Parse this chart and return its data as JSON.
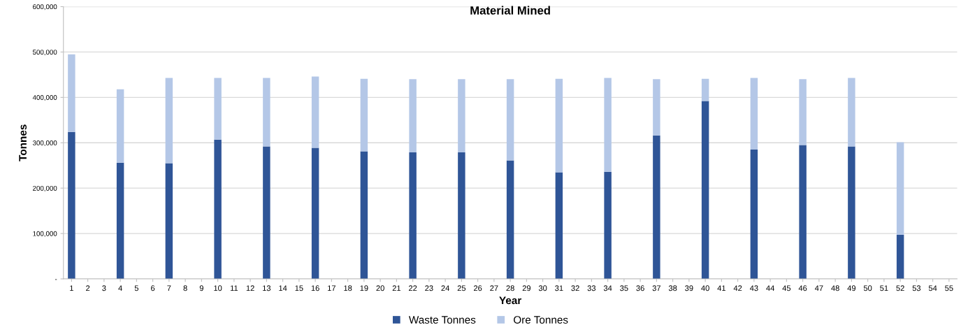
{
  "chart_data": {
    "type": "bar",
    "title": "Material Mined",
    "xlabel": "Year",
    "ylabel": "Tonnes",
    "categories": [
      "1",
      "2",
      "3",
      "4",
      "5",
      "6",
      "7",
      "8",
      "9",
      "10",
      "11",
      "12",
      "13",
      "14",
      "15",
      "16",
      "17",
      "18",
      "19",
      "20",
      "21",
      "22",
      "23",
      "24",
      "25",
      "26",
      "27",
      "28",
      "29",
      "30",
      "31",
      "32",
      "33",
      "34",
      "35",
      "36",
      "37",
      "38",
      "39",
      "40",
      "41",
      "42",
      "43",
      "44",
      "45",
      "46",
      "47",
      "48",
      "49",
      "50",
      "51",
      "52",
      "53",
      "54",
      "55"
    ],
    "stacked": true,
    "series": [
      {
        "name": "Waste Tonnes",
        "color": "#2f5597",
        "values": [
          324000,
          null,
          null,
          256000,
          null,
          null,
          255000,
          null,
          null,
          307000,
          null,
          null,
          292000,
          null,
          null,
          289000,
          null,
          null,
          281000,
          null,
          null,
          279000,
          null,
          null,
          279000,
          null,
          null,
          261000,
          null,
          null,
          235000,
          null,
          null,
          236000,
          null,
          null,
          316000,
          null,
          null,
          392000,
          null,
          null,
          285000,
          null,
          null,
          295000,
          null,
          null,
          292000,
          null,
          null,
          97000,
          null,
          null,
          null
        ]
      },
      {
        "name": "Ore Tonnes",
        "color": "#b4c7e7",
        "values": [
          171000,
          null,
          null,
          162000,
          null,
          null,
          188000,
          null,
          null,
          136000,
          null,
          null,
          151000,
          null,
          null,
          157000,
          null,
          null,
          160000,
          null,
          null,
          161000,
          null,
          null,
          161000,
          null,
          null,
          179000,
          null,
          null,
          206000,
          null,
          null,
          207000,
          null,
          null,
          124000,
          null,
          null,
          49000,
          null,
          null,
          158000,
          null,
          null,
          145000,
          null,
          null,
          151000,
          null,
          null,
          204000,
          null,
          null,
          null
        ]
      }
    ],
    "ylim": [
      0,
      600000
    ],
    "yticks": [
      {
        "value": 0,
        "label": "-"
      },
      {
        "value": 100000,
        "label": "100,000"
      },
      {
        "value": 200000,
        "label": "200,000"
      },
      {
        "value": 300000,
        "label": "300,000"
      },
      {
        "value": 400000,
        "label": "400,000"
      },
      {
        "value": 500000,
        "label": "500,000"
      },
      {
        "value": 600000,
        "label": "600,000"
      }
    ],
    "grid": "y",
    "legend": "bottom"
  }
}
